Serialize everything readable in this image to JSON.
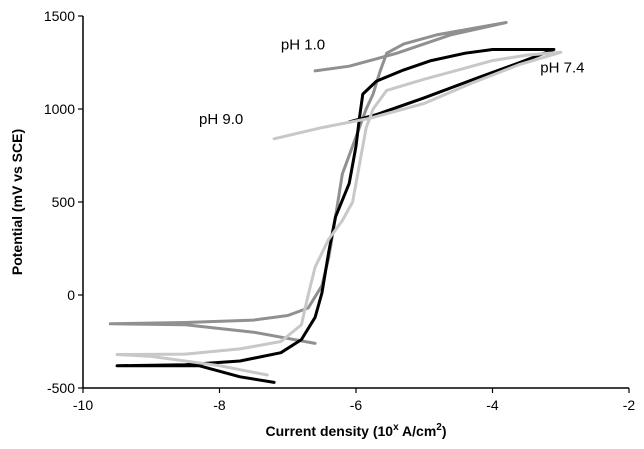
{
  "chart_data": {
    "type": "line",
    "title": "",
    "xlabel_main": "Current density (10",
    "xlabel_sup1": "x",
    "xlabel_mid": " A/cm",
    "xlabel_sup2": "2",
    "xlabel_end": ")",
    "ylabel": "Potential (mV vs SCE)",
    "xlim": [
      -10,
      -2
    ],
    "ylim": [
      -500,
      1500
    ],
    "xticks": [
      -10,
      -8,
      -6,
      -4,
      -2
    ],
    "yticks": [
      -500,
      0,
      500,
      1000,
      1500
    ],
    "xtick_labels": [
      "-10",
      "-8",
      "-6",
      "-4",
      "-2"
    ],
    "ytick_labels": [
      "-500",
      "0",
      "500",
      "1000",
      "1500"
    ],
    "grid": false,
    "legend": "none",
    "series": [
      {
        "name": "pH 1.0",
        "color": "#909090",
        "points": [
          [
            -6.6,
            -260
          ],
          [
            -7.5,
            -200
          ],
          [
            -8.5,
            -160
          ],
          [
            -9.6,
            -155
          ],
          [
            -8.5,
            -148
          ],
          [
            -7.5,
            -135
          ],
          [
            -7.0,
            -110
          ],
          [
            -6.7,
            -70
          ],
          [
            -6.5,
            50
          ],
          [
            -6.4,
            200
          ],
          [
            -6.3,
            420
          ],
          [
            -6.2,
            650
          ],
          [
            -6.0,
            850
          ],
          [
            -5.85,
            1000
          ],
          [
            -5.75,
            1080
          ],
          [
            -5.65,
            1200
          ],
          [
            -5.6,
            1250
          ],
          [
            -5.55,
            1300
          ],
          [
            -5.3,
            1350
          ],
          [
            -4.8,
            1400
          ],
          [
            -3.8,
            1465
          ],
          [
            -4.6,
            1400
          ],
          [
            -5.4,
            1300
          ],
          [
            -6.1,
            1230
          ],
          [
            -6.6,
            1205
          ]
        ]
      },
      {
        "name": "pH 7.4",
        "color": "#000000",
        "points": [
          [
            -7.2,
            -470
          ],
          [
            -7.7,
            -440
          ],
          [
            -8.3,
            -380
          ],
          [
            -9.5,
            -380
          ],
          [
            -8.5,
            -375
          ],
          [
            -7.7,
            -355
          ],
          [
            -7.1,
            -310
          ],
          [
            -6.8,
            -240
          ],
          [
            -6.6,
            -120
          ],
          [
            -6.5,
            10
          ],
          [
            -6.4,
            230
          ],
          [
            -6.3,
            420
          ],
          [
            -6.1,
            600
          ],
          [
            -6.0,
            800
          ],
          [
            -5.95,
            950
          ],
          [
            -5.9,
            1080
          ],
          [
            -5.7,
            1150
          ],
          [
            -5.3,
            1210
          ],
          [
            -4.9,
            1260
          ],
          [
            -4.4,
            1300
          ],
          [
            -4.0,
            1320
          ],
          [
            -3.1,
            1320
          ],
          [
            -3.6,
            1250
          ],
          [
            -4.2,
            1170
          ],
          [
            -5.0,
            1060
          ],
          [
            -5.7,
            970
          ],
          [
            -6.1,
            930
          ]
        ]
      },
      {
        "name": "pH 9.0",
        "color": "#c8c8c8",
        "points": [
          [
            -7.3,
            -430
          ],
          [
            -8.0,
            -380
          ],
          [
            -9.0,
            -330
          ],
          [
            -9.5,
            -320
          ],
          [
            -8.5,
            -318
          ],
          [
            -7.7,
            -290
          ],
          [
            -7.1,
            -250
          ],
          [
            -6.8,
            -160
          ],
          [
            -6.7,
            0
          ],
          [
            -6.6,
            150
          ],
          [
            -6.4,
            300
          ],
          [
            -6.2,
            400
          ],
          [
            -6.05,
            500
          ],
          [
            -5.95,
            700
          ],
          [
            -5.85,
            900
          ],
          [
            -5.75,
            1000
          ],
          [
            -5.55,
            1100
          ],
          [
            -5.0,
            1160
          ],
          [
            -4.5,
            1210
          ],
          [
            -4.0,
            1260
          ],
          [
            -3.5,
            1290
          ],
          [
            -3.0,
            1305
          ],
          [
            -3.6,
            1240
          ],
          [
            -4.3,
            1140
          ],
          [
            -5.0,
            1030
          ],
          [
            -5.8,
            950
          ],
          [
            -6.5,
            900
          ],
          [
            -7.2,
            840
          ]
        ]
      }
    ],
    "annotations": [
      {
        "text": "pH 1.0",
        "x": -7.1,
        "y": 1320
      },
      {
        "text": "pH 7.4",
        "x": -3.3,
        "y": 1195
      },
      {
        "text": "pH 9.0",
        "x": -8.3,
        "y": 920
      }
    ]
  }
}
